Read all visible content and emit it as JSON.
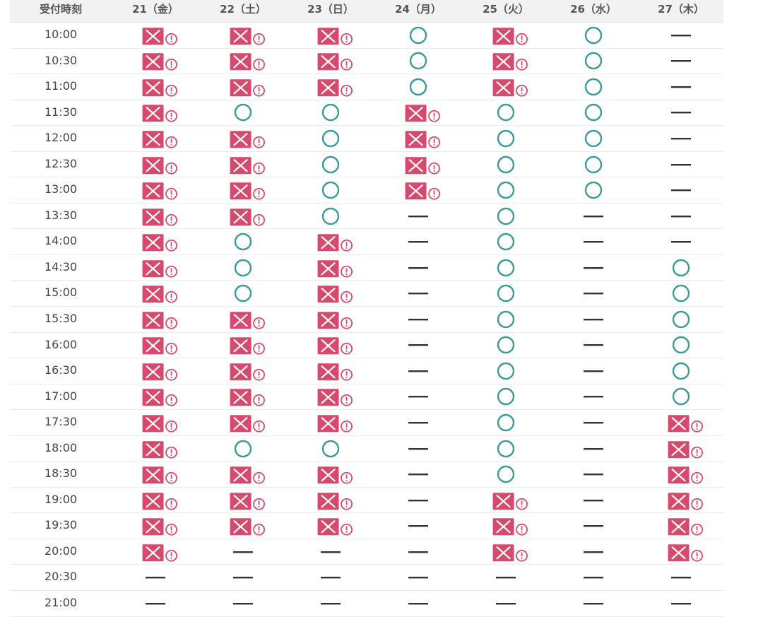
{
  "header": {
    "time_label": "受付時刻",
    "days": [
      "21（金）",
      "22（土）",
      "23（日）",
      "24（月）",
      "25（火）",
      "26（水）",
      "27（木）"
    ]
  },
  "legend": {
    "available": "○",
    "full": "×",
    "closed": "—",
    "colors": {
      "available": "#3d9a9b",
      "full": "#d64a6e",
      "closed": "#333333"
    }
  },
  "rows": [
    {
      "time": "10:00",
      "cells": [
        "x",
        "x",
        "x",
        "o",
        "x",
        "o",
        "-"
      ]
    },
    {
      "time": "10:30",
      "cells": [
        "x",
        "x",
        "x",
        "o",
        "x",
        "o",
        "-"
      ]
    },
    {
      "time": "11:00",
      "cells": [
        "x",
        "x",
        "x",
        "o",
        "x",
        "o",
        "-"
      ]
    },
    {
      "time": "11:30",
      "cells": [
        "x",
        "o",
        "o",
        "x",
        "o",
        "o",
        "-"
      ]
    },
    {
      "time": "12:00",
      "cells": [
        "x",
        "x",
        "o",
        "x",
        "o",
        "o",
        "-"
      ]
    },
    {
      "time": "12:30",
      "cells": [
        "x",
        "x",
        "o",
        "x",
        "o",
        "o",
        "-"
      ]
    },
    {
      "time": "13:00",
      "cells": [
        "x",
        "x",
        "o",
        "x",
        "o",
        "o",
        "-"
      ]
    },
    {
      "time": "13:30",
      "cells": [
        "x",
        "x",
        "o",
        "-",
        "o",
        "-",
        "-"
      ]
    },
    {
      "time": "14:00",
      "cells": [
        "x",
        "o",
        "x",
        "-",
        "o",
        "-",
        "-"
      ]
    },
    {
      "time": "14:30",
      "cells": [
        "x",
        "o",
        "x",
        "-",
        "o",
        "-",
        "o"
      ]
    },
    {
      "time": "15:00",
      "cells": [
        "x",
        "o",
        "x",
        "-",
        "o",
        "-",
        "o"
      ]
    },
    {
      "time": "15:30",
      "cells": [
        "x",
        "x",
        "x",
        "-",
        "o",
        "-",
        "o"
      ]
    },
    {
      "time": "16:00",
      "cells": [
        "x",
        "x",
        "x",
        "-",
        "o",
        "-",
        "o"
      ]
    },
    {
      "time": "16:30",
      "cells": [
        "x",
        "x",
        "x",
        "-",
        "o",
        "-",
        "o"
      ]
    },
    {
      "time": "17:00",
      "cells": [
        "x",
        "x",
        "x",
        "-",
        "o",
        "-",
        "o"
      ]
    },
    {
      "time": "17:30",
      "cells": [
        "x",
        "x",
        "x",
        "-",
        "o",
        "-",
        "x"
      ]
    },
    {
      "time": "18:00",
      "cells": [
        "x",
        "o",
        "o",
        "-",
        "o",
        "-",
        "x"
      ]
    },
    {
      "time": "18:30",
      "cells": [
        "x",
        "x",
        "x",
        "-",
        "o",
        "-",
        "x"
      ]
    },
    {
      "time": "19:00",
      "cells": [
        "x",
        "x",
        "x",
        "-",
        "x",
        "-",
        "x"
      ]
    },
    {
      "time": "19:30",
      "cells": [
        "x",
        "x",
        "x",
        "-",
        "x",
        "-",
        "x"
      ]
    },
    {
      "time": "20:00",
      "cells": [
        "x",
        "-",
        "-",
        "-",
        "x",
        "-",
        "x"
      ]
    },
    {
      "time": "20:30",
      "cells": [
        "-",
        "-",
        "-",
        "-",
        "-",
        "-",
        "-"
      ]
    },
    {
      "time": "21:00",
      "cells": [
        "-",
        "-",
        "-",
        "-",
        "-",
        "-",
        "-"
      ]
    }
  ]
}
